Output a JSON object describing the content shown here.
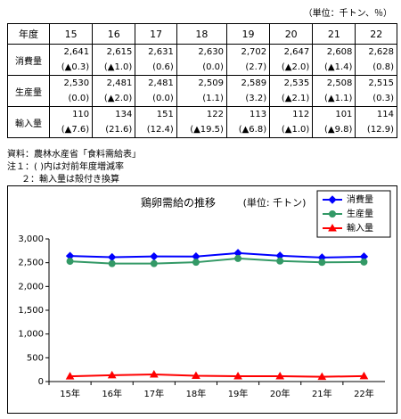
{
  "unit": "（単位：千トン、％）",
  "table": {
    "header": [
      "年度",
      "15",
      "16",
      "17",
      "18",
      "19",
      "20",
      "21",
      "22"
    ],
    "rows": [
      {
        "label": "消費量",
        "values": [
          "2,641",
          "2,615",
          "2,631",
          "2,630",
          "2,702",
          "2,647",
          "2,608",
          "2,628"
        ],
        "changes": [
          "(▲0.3)",
          "(▲1.0)",
          "(0.6)",
          "(0.0)",
          "(2.7)",
          "(▲2.0)",
          "(▲1.4)",
          "(0.8)"
        ]
      },
      {
        "label": "生産量",
        "values": [
          "2,530",
          "2,481",
          "2,481",
          "2,509",
          "2,589",
          "2,535",
          "2,508",
          "2,515"
        ],
        "changes": [
          "(0.0)",
          "(▲2.0)",
          "(0.0)",
          "(1.1)",
          "(3.2)",
          "(▲2.1)",
          "(▲1.1)",
          "(0.3)"
        ]
      },
      {
        "label": "輸入量",
        "values": [
          "110",
          "134",
          "151",
          "122",
          "113",
          "112",
          "101",
          "114"
        ],
        "changes": [
          "(▲7.6)",
          "(21.6)",
          "(12.4)",
          "(▲19.5)",
          "(▲6.8)",
          "(▲1.0)",
          "(▲9.8)",
          "(12.9)"
        ]
      }
    ]
  },
  "notes": [
    "資料：農林水産省「食料需給表」",
    "注１：( )内は対前年度増減率",
    "２：輸入量は殻付き換算"
  ],
  "chart_data": {
    "type": "line",
    "title": "鶏卵需給の推移",
    "subtitle": "(単位: 千トン)",
    "categories": [
      "15年",
      "16年",
      "17年",
      "18年",
      "19年",
      "20年",
      "21年",
      "22年"
    ],
    "series": [
      {
        "name": "消費量",
        "color": "#0000ff",
        "marker": "diamond",
        "values": [
          2641,
          2615,
          2631,
          2630,
          2702,
          2647,
          2608,
          2628
        ]
      },
      {
        "name": "生産量",
        "color": "#339966",
        "marker": "circle",
        "values": [
          2530,
          2481,
          2481,
          2509,
          2589,
          2535,
          2508,
          2515
        ]
      },
      {
        "name": "輸入量",
        "color": "#ff0000",
        "marker": "triangle",
        "values": [
          110,
          134,
          151,
          122,
          113,
          112,
          101,
          114
        ]
      }
    ],
    "ylim": [
      0,
      3000
    ],
    "yticks": [
      0,
      500,
      {
        "value": 1000,
        "label": "1,000"
      },
      {
        "value": 1500,
        "label": "1,500"
      },
      {
        "value": 2000,
        "label": "2,000"
      },
      {
        "value": 2500,
        "label": "2,500"
      },
      {
        "value": 3000,
        "label": "3,000"
      }
    ],
    "grid": false,
    "legend": "top-right"
  }
}
